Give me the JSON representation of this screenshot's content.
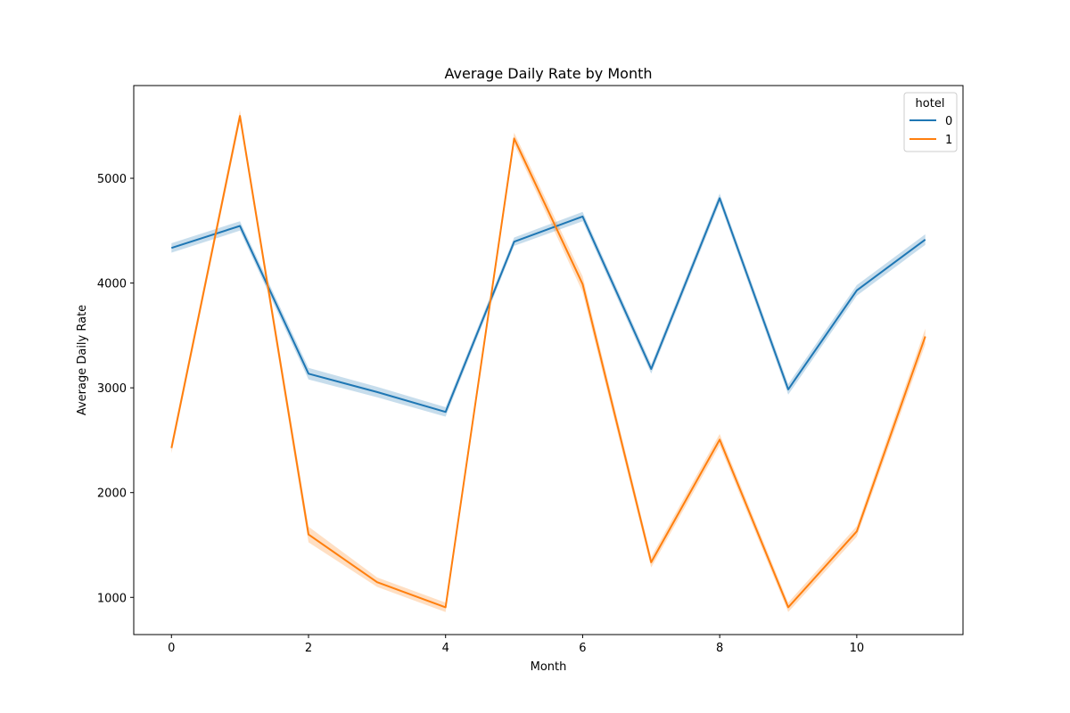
{
  "chart_data": {
    "type": "line",
    "title": "Average Daily Rate by Month",
    "xlabel": "Month",
    "ylabel": "Average Daily Rate",
    "x": [
      0,
      1,
      2,
      3,
      4,
      5,
      6,
      7,
      8,
      9,
      10,
      11
    ],
    "xlim": [
      -0.55,
      11.55
    ],
    "ylim": [
      645,
      5885
    ],
    "xticks": [
      0,
      2,
      4,
      6,
      8,
      10
    ],
    "yticks": [
      1000,
      2000,
      3000,
      4000,
      5000
    ],
    "grid": false,
    "legend": {
      "title": "hotel",
      "placement": "top-right"
    },
    "series": [
      {
        "name": "0",
        "color": "#1f77b4",
        "values": [
          4335,
          4545,
          3135,
          2960,
          2770,
          4395,
          4635,
          3180,
          4810,
          2985,
          3930,
          4415
        ],
        "ci_halfwidth": [
          45,
          45,
          55,
          50,
          45,
          40,
          45,
          45,
          45,
          50,
          50,
          50
        ]
      },
      {
        "name": "1",
        "color": "#ff7f0e",
        "values": [
          2425,
          5595,
          1600,
          1145,
          905,
          5380,
          3990,
          1335,
          2505,
          905,
          1630,
          3490
        ],
        "ci_halfwidth": [
          50,
          55,
          75,
          45,
          45,
          55,
          75,
          50,
          55,
          45,
          50,
          75
        ]
      }
    ]
  }
}
